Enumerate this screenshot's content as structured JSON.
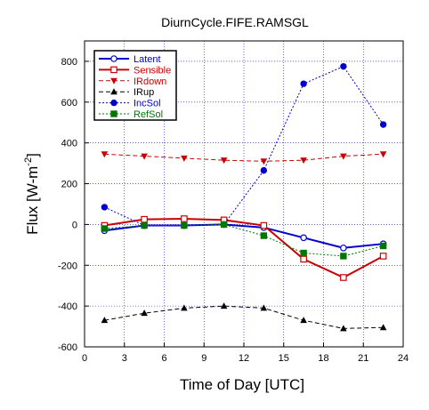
{
  "chart_data": {
    "type": "line",
    "title": "DiurnCycle.FIFE.RAMSGL",
    "xlabel": "Time of Day [UTC]",
    "ylabel_main": "Flux [W-m",
    "ylabel_sup": "-2",
    "ylabel_close": "]",
    "xlim": [
      0,
      24
    ],
    "ylim": [
      -600,
      900
    ],
    "xticks": [
      0,
      3,
      6,
      9,
      12,
      15,
      18,
      21,
      24
    ],
    "yticks": [
      -600,
      -400,
      -200,
      0,
      200,
      400,
      600,
      800
    ],
    "grid": true,
    "legend_position": "top-left",
    "x": [
      1.5,
      4.5,
      7.5,
      10.5,
      13.5,
      16.5,
      19.5,
      22.5
    ],
    "series": [
      {
        "name": "Latent",
        "color": "#0000cc",
        "dash": "solid",
        "width": 2,
        "marker": "circle-open",
        "values": [
          -30,
          -5,
          -5,
          0,
          -15,
          -65,
          -115,
          -95
        ]
      },
      {
        "name": "Sensible",
        "color": "#cc0000",
        "dash": "solid",
        "width": 2,
        "marker": "square-open",
        "values": [
          -5,
          25,
          28,
          22,
          -5,
          -170,
          -260,
          -155
        ]
      },
      {
        "name": "IRdown",
        "color": "#cc0000",
        "dash": "dashed",
        "width": 1,
        "marker": "triangle-down",
        "values": [
          345,
          335,
          325,
          315,
          310,
          315,
          335,
          345
        ]
      },
      {
        "name": "IRup",
        "color": "#000000",
        "dash": "dashed",
        "width": 1,
        "marker": "triangle-up",
        "values": [
          -470,
          -435,
          -410,
          -400,
          -410,
          -470,
          -510,
          -505
        ]
      },
      {
        "name": "IncSol",
        "color": "#0000cc",
        "dash": "dotted",
        "width": 1,
        "marker": "circle",
        "values": [
          85,
          -5,
          -5,
          0,
          265,
          690,
          775,
          490
        ]
      },
      {
        "name": "RefSol",
        "color": "#007700",
        "dash": "dotted",
        "width": 1,
        "marker": "square",
        "values": [
          -20,
          -5,
          -5,
          0,
          -55,
          -140,
          -155,
          -105
        ]
      }
    ]
  }
}
